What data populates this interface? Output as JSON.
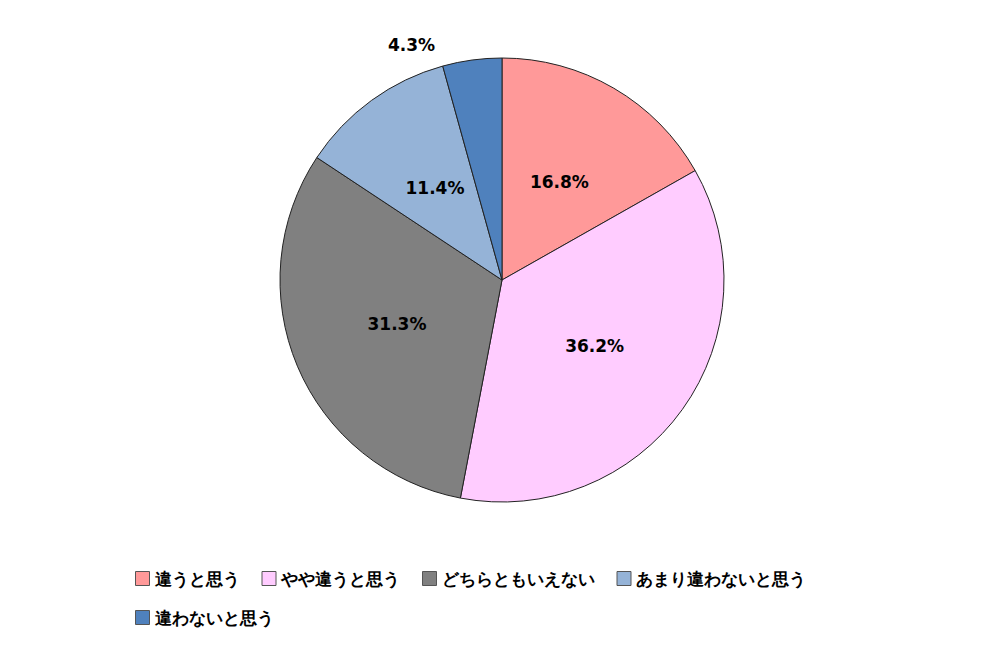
{
  "chart_data": {
    "type": "pie",
    "categories": [
      "違うと思う",
      "やや違うと思う",
      "どちらともいえない",
      "あまり違わないと思う",
      "違わないと思う"
    ],
    "values": [
      16.8,
      36.2,
      31.3,
      11.4,
      4.3
    ],
    "value_labels": [
      "16.8%",
      "36.2%",
      "31.3%",
      "11.4%",
      "4.3%"
    ],
    "colors": [
      "#ff9999",
      "#ffccff",
      "#808080",
      "#95b3d7",
      "#4f81bd"
    ],
    "data_labels": true,
    "legend": "bottom"
  }
}
